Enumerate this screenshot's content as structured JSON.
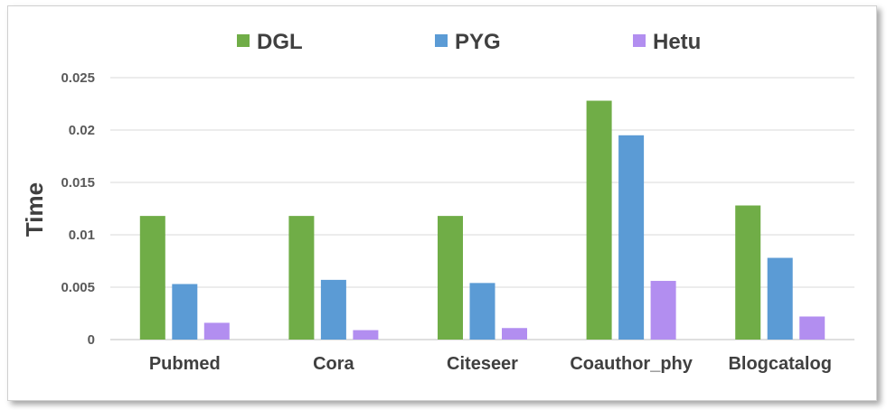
{
  "chart_data": {
    "type": "bar",
    "categories": [
      "Pubmed",
      "Cora",
      "Citeseer",
      "Coauthor_phy",
      "Blogcatalog"
    ],
    "series": [
      {
        "name": "DGL",
        "color": "#70ad47",
        "values": [
          0.0118,
          0.0118,
          0.0118,
          0.0228,
          0.0128
        ]
      },
      {
        "name": "PYG",
        "color": "#5b9bd5",
        "values": [
          0.0053,
          0.0057,
          0.0054,
          0.0195,
          0.0078
        ]
      },
      {
        "name": "Hetu",
        "color": "#b28ef0",
        "values": [
          0.0016,
          0.0009,
          0.0011,
          0.0056,
          0.0022
        ]
      }
    ],
    "title": "",
    "xlabel": "",
    "ylabel": "Time",
    "ylim": [
      0,
      0.025
    ],
    "yticks": [
      "0",
      "0.005",
      "0.01",
      "0.015",
      "0.02",
      "0.025"
    ],
    "grid": true,
    "legend_position": "top"
  }
}
